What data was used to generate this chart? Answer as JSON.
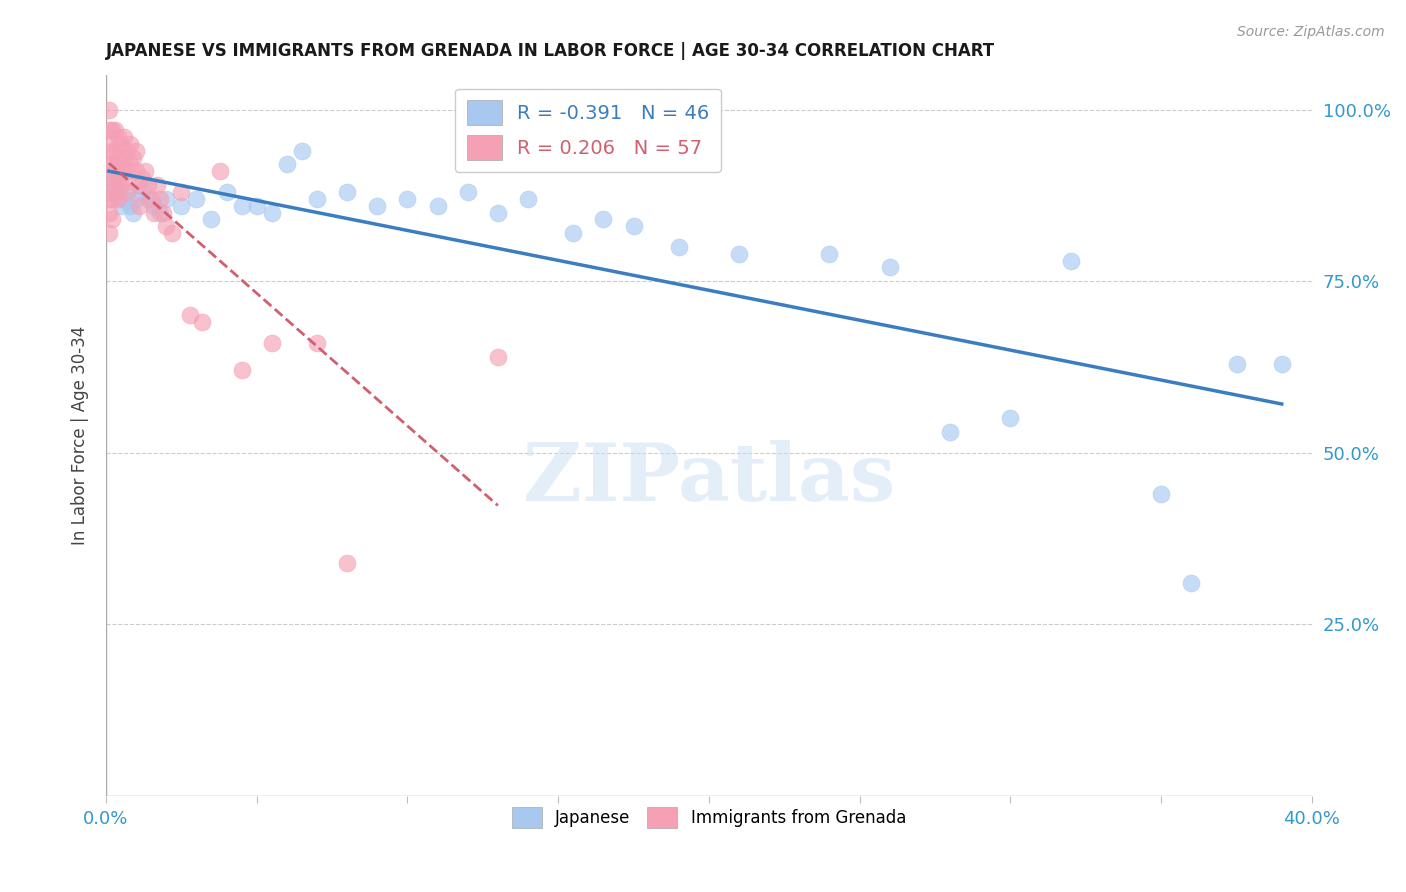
{
  "title": "JAPANESE VS IMMIGRANTS FROM GRENADA IN LABOR FORCE | AGE 30-34 CORRELATION CHART",
  "source": "Source: ZipAtlas.com",
  "ylabel": "In Labor Force | Age 30-34",
  "xlim": [
    0.0,
    0.4
  ],
  "ylim": [
    0.0,
    1.05
  ],
  "xtick_vals": [
    0.0,
    0.05,
    0.1,
    0.15,
    0.2,
    0.25,
    0.3,
    0.35,
    0.4
  ],
  "xticklabels": [
    "0.0%",
    "",
    "",
    "",
    "",
    "",
    "",
    "",
    "40.0%"
  ],
  "ytick_right_labels": [
    "",
    "25.0%",
    "50.0%",
    "75.0%",
    "100.0%"
  ],
  "ytick_right_values": [
    0.0,
    0.25,
    0.5,
    0.75,
    1.0
  ],
  "legend_blue_r": "-0.391",
  "legend_blue_n": "46",
  "legend_pink_r": "0.206",
  "legend_pink_n": "57",
  "blue_color": "#a8c8f0",
  "pink_color": "#f5a0b5",
  "trendline_blue": "#3a7dc0",
  "trendline_pink": "#d06070",
  "watermark_text": "ZIPatlas",
  "blue_points_x": [
    0.001,
    0.002,
    0.003,
    0.004,
    0.005,
    0.006,
    0.007,
    0.008,
    0.009,
    0.01,
    0.012,
    0.014,
    0.016,
    0.018,
    0.02,
    0.025,
    0.03,
    0.035,
    0.04,
    0.045,
    0.05,
    0.055,
    0.06,
    0.065,
    0.07,
    0.08,
    0.09,
    0.1,
    0.11,
    0.12,
    0.13,
    0.14,
    0.155,
    0.165,
    0.175,
    0.19,
    0.21,
    0.24,
    0.26,
    0.28,
    0.3,
    0.32,
    0.35,
    0.36,
    0.375,
    0.39
  ],
  "blue_points_y": [
    0.88,
    0.91,
    0.9,
    0.88,
    0.86,
    0.87,
    0.88,
    0.86,
    0.85,
    0.87,
    0.88,
    0.87,
    0.86,
    0.85,
    0.87,
    0.86,
    0.87,
    0.84,
    0.88,
    0.86,
    0.86,
    0.85,
    0.92,
    0.94,
    0.87,
    0.88,
    0.86,
    0.87,
    0.86,
    0.88,
    0.85,
    0.87,
    0.82,
    0.84,
    0.83,
    0.8,
    0.79,
    0.79,
    0.77,
    0.53,
    0.55,
    0.78,
    0.44,
    0.31,
    0.63,
    0.63
  ],
  "pink_points_x": [
    0.001,
    0.001,
    0.001,
    0.001,
    0.001,
    0.001,
    0.001,
    0.001,
    0.002,
    0.002,
    0.002,
    0.002,
    0.002,
    0.002,
    0.003,
    0.003,
    0.003,
    0.003,
    0.004,
    0.004,
    0.004,
    0.004,
    0.005,
    0.005,
    0.005,
    0.006,
    0.006,
    0.006,
    0.007,
    0.007,
    0.007,
    0.008,
    0.008,
    0.009,
    0.01,
    0.01,
    0.011,
    0.011,
    0.012,
    0.013,
    0.014,
    0.015,
    0.016,
    0.017,
    0.018,
    0.019,
    0.02,
    0.022,
    0.025,
    0.028,
    0.032,
    0.038,
    0.045,
    0.055,
    0.07,
    0.08,
    0.13
  ],
  "pink_points_y": [
    1.0,
    0.97,
    0.95,
    0.92,
    0.9,
    0.87,
    0.85,
    0.82,
    0.97,
    0.94,
    0.92,
    0.89,
    0.87,
    0.84,
    0.97,
    0.94,
    0.91,
    0.88,
    0.96,
    0.93,
    0.9,
    0.87,
    0.95,
    0.92,
    0.89,
    0.96,
    0.93,
    0.9,
    0.94,
    0.91,
    0.88,
    0.95,
    0.92,
    0.93,
    0.94,
    0.91,
    0.89,
    0.86,
    0.9,
    0.91,
    0.89,
    0.87,
    0.85,
    0.89,
    0.87,
    0.85,
    0.83,
    0.82,
    0.88,
    0.7,
    0.69,
    0.91,
    0.62,
    0.66,
    0.66,
    0.34,
    0.64
  ]
}
